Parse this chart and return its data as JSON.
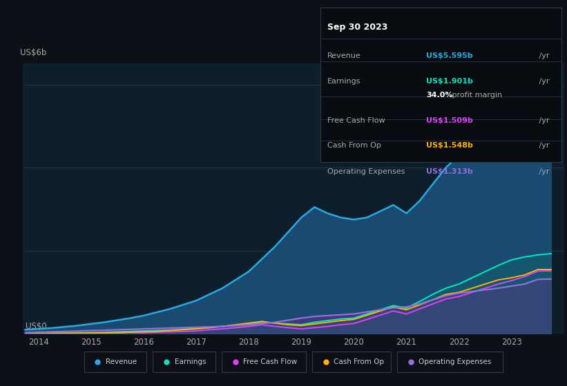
{
  "background_color": "#0d1117",
  "chart_bg": "#0d1f2d",
  "grid_color": "#253545",
  "text_color": "#aaaaaa",
  "ylabel": "US$6b",
  "ylabel0": "US$0",
  "ylim": [
    0,
    6.5
  ],
  "yticks_display": [
    0,
    2,
    4,
    6
  ],
  "years": [
    2013.75,
    2014.0,
    2014.25,
    2014.5,
    2014.75,
    2015.0,
    2015.25,
    2015.5,
    2015.75,
    2016.0,
    2016.25,
    2016.5,
    2016.75,
    2017.0,
    2017.25,
    2017.5,
    2017.75,
    2018.0,
    2018.25,
    2018.5,
    2018.75,
    2019.0,
    2019.25,
    2019.5,
    2019.75,
    2020.0,
    2020.25,
    2020.5,
    2020.75,
    2021.0,
    2021.25,
    2021.5,
    2021.75,
    2022.0,
    2022.25,
    2022.5,
    2022.75,
    2023.0,
    2023.25,
    2023.5,
    2023.75
  ],
  "revenue": [
    0.1,
    0.12,
    0.14,
    0.17,
    0.2,
    0.24,
    0.28,
    0.33,
    0.38,
    0.44,
    0.52,
    0.6,
    0.7,
    0.8,
    0.95,
    1.1,
    1.3,
    1.5,
    1.8,
    2.1,
    2.45,
    2.8,
    3.05,
    2.9,
    2.8,
    2.75,
    2.8,
    2.95,
    3.1,
    2.9,
    3.2,
    3.6,
    4.0,
    4.3,
    4.6,
    4.85,
    5.1,
    5.35,
    5.5,
    5.595,
    6.0
  ],
  "earnings": [
    0.01,
    0.01,
    0.02,
    0.02,
    0.03,
    0.03,
    0.04,
    0.05,
    0.06,
    0.07,
    0.08,
    0.09,
    0.11,
    0.13,
    0.15,
    0.18,
    0.21,
    0.24,
    0.28,
    0.26,
    0.24,
    0.22,
    0.28,
    0.32,
    0.36,
    0.38,
    0.48,
    0.58,
    0.68,
    0.62,
    0.78,
    0.95,
    1.1,
    1.2,
    1.35,
    1.5,
    1.65,
    1.78,
    1.85,
    1.901,
    1.93
  ],
  "free_cash_flow": [
    0.005,
    0.007,
    0.008,
    0.009,
    0.01,
    0.01,
    0.02,
    0.02,
    0.03,
    0.03,
    0.04,
    0.05,
    0.06,
    0.07,
    0.1,
    0.12,
    0.15,
    0.18,
    0.22,
    0.18,
    0.15,
    0.12,
    0.15,
    0.18,
    0.22,
    0.25,
    0.35,
    0.45,
    0.55,
    0.48,
    0.6,
    0.72,
    0.84,
    0.9,
    1.0,
    1.1,
    1.2,
    1.28,
    1.38,
    1.509,
    1.52
  ],
  "cash_from_op": [
    0.008,
    0.01,
    0.012,
    0.015,
    0.018,
    0.02,
    0.025,
    0.03,
    0.04,
    0.05,
    0.06,
    0.08,
    0.1,
    0.12,
    0.15,
    0.18,
    0.22,
    0.26,
    0.3,
    0.26,
    0.22,
    0.2,
    0.24,
    0.28,
    0.32,
    0.35,
    0.45,
    0.55,
    0.65,
    0.58,
    0.7,
    0.82,
    0.95,
    1.0,
    1.1,
    1.2,
    1.3,
    1.35,
    1.42,
    1.548,
    1.55
  ],
  "op_expenses": [
    0.03,
    0.04,
    0.05,
    0.06,
    0.07,
    0.08,
    0.09,
    0.1,
    0.11,
    0.12,
    0.13,
    0.14,
    0.15,
    0.16,
    0.17,
    0.18,
    0.2,
    0.22,
    0.25,
    0.28,
    0.33,
    0.38,
    0.42,
    0.44,
    0.46,
    0.48,
    0.53,
    0.58,
    0.63,
    0.65,
    0.72,
    0.82,
    0.92,
    0.98,
    1.02,
    1.06,
    1.1,
    1.15,
    1.2,
    1.313,
    1.32
  ],
  "revenue_color": "#29abe2",
  "earnings_color": "#00e5c0",
  "fcf_color": "#e040fb",
  "cashop_color": "#ffb300",
  "opex_color": "#9370db",
  "revenue_fill_color": "#1a4a70",
  "opex_fill_color": "#5a2d82",
  "legend_items": [
    "Revenue",
    "Earnings",
    "Free Cash Flow",
    "Cash From Op",
    "Operating Expenses"
  ],
  "legend_colors": [
    "#29abe2",
    "#00e5c0",
    "#e040fb",
    "#ffb300",
    "#9370db"
  ],
  "tooltip_bg": "#080c10",
  "tooltip_border": "#2a3a4a",
  "tooltip_title": "Sep 30 2023",
  "tooltip_revenue_label": "Revenue",
  "tooltip_revenue_val": "US$5.595b",
  "tooltip_earnings_label": "Earnings",
  "tooltip_earnings_val": "US$1.901b",
  "tooltip_margin_pct": "34.0%",
  "tooltip_margin_text": " profit margin",
  "tooltip_fcf_label": "Free Cash Flow",
  "tooltip_fcf_val": "US$1.509b",
  "tooltip_cashop_label": "Cash From Op",
  "tooltip_cashop_val": "US$1.548b",
  "tooltip_opex_label": "Operating Expenses",
  "tooltip_opex_val": "US$1.313b",
  "tooltip_yr": " /yr",
  "xticks": [
    2014,
    2015,
    2016,
    2017,
    2018,
    2019,
    2020,
    2021,
    2022,
    2023
  ],
  "xlim": [
    2013.7,
    2024.0
  ]
}
